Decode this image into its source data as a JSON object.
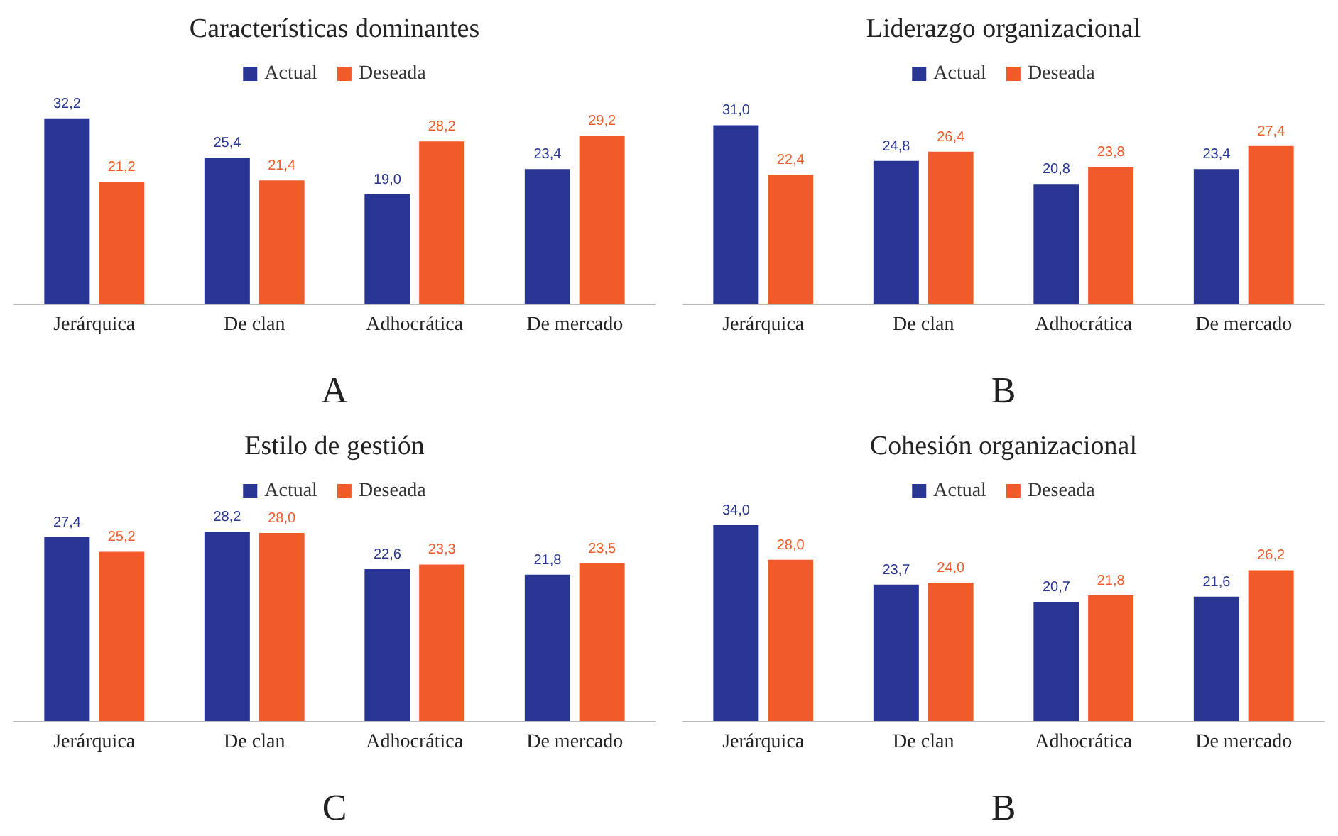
{
  "chart_data": [
    {
      "type": "bar",
      "title": "Características dominantes",
      "categories": [
        "Jerárquica",
        "De clan",
        "Adhocrática",
        "De mercado"
      ],
      "legend": "top",
      "annotations": [
        "A"
      ],
      "series": [
        {
          "name": "Actual",
          "color": "#283593",
          "values": [
            32.2,
            25.4,
            19.0,
            23.4
          ],
          "value_labels": [
            "32,2",
            "25,4",
            "19,0",
            "23,4"
          ]
        },
        {
          "name": "Deseada",
          "color": "#f15a29",
          "values": [
            21.2,
            21.4,
            28.2,
            29.2
          ],
          "value_labels": [
            "21,2",
            "21,4",
            "28,2",
            "29,2"
          ]
        }
      ]
    },
    {
      "type": "bar",
      "title": "Liderazgo organizacional",
      "categories": [
        "Jerárquica",
        "De clan",
        "Adhocrática",
        "De mercado"
      ],
      "legend": "top",
      "annotations": [
        "B"
      ],
      "series": [
        {
          "name": "Actual",
          "color": "#283593",
          "values": [
            31.0,
            24.8,
            20.8,
            23.4
          ],
          "value_labels": [
            "31,0",
            "24,8",
            "20,8",
            "23,4"
          ]
        },
        {
          "name": "Deseada",
          "color": "#f15a29",
          "values": [
            22.4,
            26.4,
            23.8,
            27.4
          ],
          "value_labels": [
            "22,4",
            "26,4",
            "23,8",
            "27,4"
          ]
        }
      ]
    },
    {
      "type": "bar",
      "title": "Estilo de gestión",
      "categories": [
        "Jerárquica",
        "De clan",
        "Adhocrática",
        "De mercado"
      ],
      "legend": "top",
      "annotations": [
        "C"
      ],
      "series": [
        {
          "name": "Actual",
          "color": "#283593",
          "values": [
            27.4,
            28.2,
            22.6,
            21.8
          ],
          "value_labels": [
            "27,4",
            "28,2",
            "22,6",
            "21,8"
          ]
        },
        {
          "name": "Deseada",
          "color": "#f15a29",
          "values": [
            25.2,
            28.0,
            23.3,
            23.5
          ],
          "value_labels": [
            "25,2",
            "28,0",
            "23,3",
            "23,5"
          ]
        }
      ]
    },
    {
      "type": "bar",
      "title": "Cohesión organizacional",
      "categories": [
        "Jerárquica",
        "De clan",
        "Adhocrática",
        "De mercado"
      ],
      "legend": "top",
      "annotations": [
        "B"
      ],
      "series": [
        {
          "name": "Actual",
          "color": "#283593",
          "values": [
            34.0,
            23.7,
            20.7,
            21.6
          ],
          "value_labels": [
            "34,0",
            "23,7",
            "20,7",
            "21,6"
          ]
        },
        {
          "name": "Deseada",
          "color": "#f15a29",
          "values": [
            28.0,
            24.0,
            21.8,
            26.2
          ],
          "value_labels": [
            "28,0",
            "24,0",
            "21,8",
            "26,2"
          ]
        }
      ]
    }
  ]
}
